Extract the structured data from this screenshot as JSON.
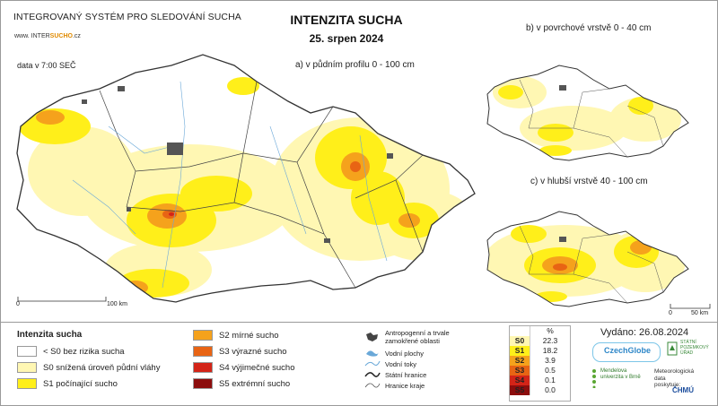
{
  "header": {
    "system_name": "INTEGROVANÝ SYSTÉM PRO SLEDOVÁNÍ SUCHA",
    "site_prefix": "www. INTER",
    "site_highlight": "SUCHO",
    "site_suffix": ".cz",
    "data_time": "data v 7:00 SEČ",
    "title": "INTENZITA SUCHA",
    "date": "25. srpen 2024"
  },
  "maps": {
    "a_label": "a) v půdním profilu 0 - 100 cm",
    "b_label": "b) v povrchové vrstvě 0 - 40 cm",
    "c_label": "c) v hlubší vrstvě 40 - 100 cm",
    "scale_main": {
      "zero": "0",
      "end": "100 km"
    },
    "scale_small": {
      "zero": "0",
      "end": "50 km"
    }
  },
  "legend": {
    "title": "Intenzita sucha",
    "classes": [
      {
        "label": "< S0 bez rizika sucha",
        "color": "#ffffff"
      },
      {
        "label": "S0 snížená úroveň půdní vláhy",
        "color": "#fff7b3"
      },
      {
        "label": "S1 počínající sucho",
        "color": "#ffef1a"
      },
      {
        "label": "S2 mírné sucho",
        "color": "#f5a21c"
      },
      {
        "label": "S3 výrazné sucho",
        "color": "#e86414"
      },
      {
        "label": "S4 výjimečné sucho",
        "color": "#d32418"
      },
      {
        "label": "S5 extrémní sucho",
        "color": "#8c0d0d"
      }
    ]
  },
  "symbols": {
    "anthropogenic_line1": "Antropogenní a trvale",
    "anthropogenic_line2": "zamokřené oblasti",
    "water_areas": "Vodní plochy",
    "water_streams": "Vodní toky",
    "state_border": "Státní hranice",
    "region_border": "Hranice kraje"
  },
  "percent_table": {
    "header": "%",
    "rows": [
      {
        "code": "S0",
        "value": "22.3",
        "color": "#fff7b3"
      },
      {
        "code": "S1",
        "value": "18.2",
        "color": "#ffef1a"
      },
      {
        "code": "S2",
        "value": "3.9",
        "color": "#f5a21c"
      },
      {
        "code": "S3",
        "value": "0.5",
        "color": "#e86414"
      },
      {
        "code": "S4",
        "value": "0.1",
        "color": "#d32418"
      },
      {
        "code": "S5",
        "value": "0.0",
        "color": "#8c0d0d"
      }
    ]
  },
  "footer": {
    "issued": "Vydáno: 26.08.2024",
    "czechglobe": "CzechGlobe",
    "spu": "STÁTNÍ POZEMKOVÝ ÚŘAD",
    "mendel": "Mendelova univerzita v Brně",
    "meteo": "Meteorologická data poskytuje:",
    "chmu": "ČHMÚ"
  }
}
